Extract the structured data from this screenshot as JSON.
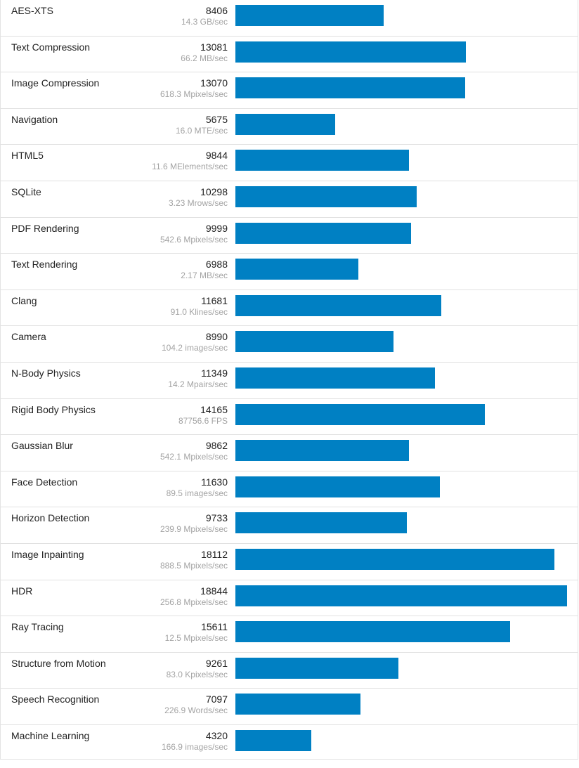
{
  "chart_data": {
    "type": "bar",
    "orientation": "horizontal",
    "bar_color": "#0080c3",
    "rows": [
      {
        "name": "AES-XTS",
        "score": 8406,
        "rate": "14.3 GB/sec"
      },
      {
        "name": "Text Compression",
        "score": 13081,
        "rate": "66.2 MB/sec"
      },
      {
        "name": "Image Compression",
        "score": 13070,
        "rate": "618.3 Mpixels/sec"
      },
      {
        "name": "Navigation",
        "score": 5675,
        "rate": "16.0 MTE/sec"
      },
      {
        "name": "HTML5",
        "score": 9844,
        "rate": "11.6 MElements/sec"
      },
      {
        "name": "SQLite",
        "score": 10298,
        "rate": "3.23 Mrows/sec"
      },
      {
        "name": "PDF Rendering",
        "score": 9999,
        "rate": "542.6 Mpixels/sec"
      },
      {
        "name": "Text Rendering",
        "score": 6988,
        "rate": "2.17 MB/sec"
      },
      {
        "name": "Clang",
        "score": 11681,
        "rate": "91.0 Klines/sec"
      },
      {
        "name": "Camera",
        "score": 8990,
        "rate": "104.2 images/sec"
      },
      {
        "name": "N-Body Physics",
        "score": 11349,
        "rate": "14.2 Mpairs/sec"
      },
      {
        "name": "Rigid Body Physics",
        "score": 14165,
        "rate": "87756.6 FPS"
      },
      {
        "name": "Gaussian Blur",
        "score": 9862,
        "rate": "542.1 Mpixels/sec"
      },
      {
        "name": "Face Detection",
        "score": 11630,
        "rate": "89.5 images/sec"
      },
      {
        "name": "Horizon Detection",
        "score": 9733,
        "rate": "239.9 Mpixels/sec"
      },
      {
        "name": "Image Inpainting",
        "score": 18112,
        "rate": "888.5 Mpixels/sec"
      },
      {
        "name": "HDR",
        "score": 18844,
        "rate": "256.8 Mpixels/sec"
      },
      {
        "name": "Ray Tracing",
        "score": 15611,
        "rate": "12.5 Mpixels/sec"
      },
      {
        "name": "Structure from Motion",
        "score": 9261,
        "rate": "83.0 Kpixels/sec"
      },
      {
        "name": "Speech Recognition",
        "score": 7097,
        "rate": "226.9 Words/sec"
      },
      {
        "name": "Machine Learning",
        "score": 4320,
        "rate": "166.9 images/sec"
      }
    ]
  }
}
